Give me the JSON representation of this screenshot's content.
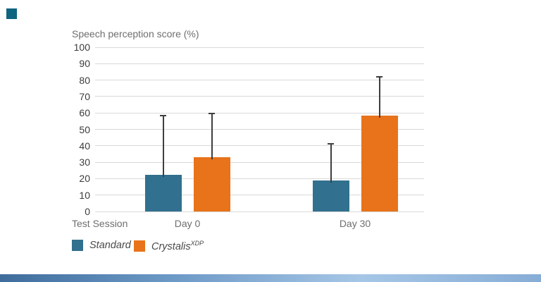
{
  "page": {
    "background": "#ffffff"
  },
  "decor": {
    "corner_square_color": "#0f6480",
    "footer_bar_gradient": [
      "#3e6d9c",
      "#6f9bc8",
      "#a6c6e6",
      "#87add6"
    ]
  },
  "colors": {
    "standard_series": "#31708e",
    "crystalis_series": "#e8731a",
    "gridline": "#d9d9d9",
    "error_bar": "#3e3e3e",
    "title_text": "#6e6e6e",
    "tick_text": "#3b3b3b",
    "legend_text": "#4a4a4a"
  },
  "chart_data": {
    "type": "bar",
    "title": "Speech perception score (%)",
    "xlabel": "Test Session",
    "ylabel": "Speech perception score (%)",
    "categories": [
      "Day 0",
      "Day 30"
    ],
    "series": [
      {
        "name": "Standard",
        "name_sup": "",
        "color": "#31708e",
        "values": [
          22.5,
          19
        ],
        "error_top": [
          58.5,
          41
        ]
      },
      {
        "name": "Crystalis",
        "name_sup": "XDP",
        "color": "#e8731a",
        "values": [
          33,
          58.5
        ],
        "error_top": [
          59.5,
          82
        ]
      }
    ],
    "ylim": [
      0,
      100
    ],
    "ytick_step": 10,
    "grid": true,
    "error_bars": "upper only, capped",
    "legend_position": "bottom-left"
  }
}
